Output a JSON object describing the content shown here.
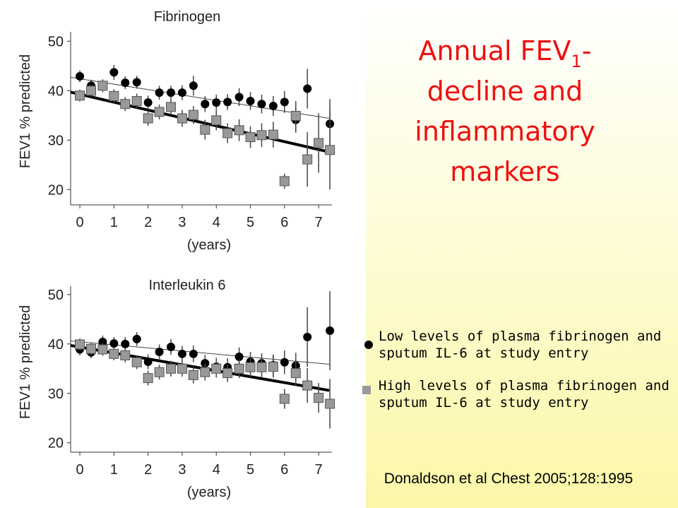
{
  "chart_data": [
    {
      "type": "scatter",
      "title": "Fibrinogen",
      "xlabel": "(years)",
      "ylabel": "FEV1 % predicted",
      "xlim": [
        -0.27,
        7.39
      ],
      "ylim": [
        16.9,
        51.9
      ],
      "xticks": [
        0,
        1,
        2,
        3,
        4,
        5,
        6,
        7
      ],
      "yticks": [
        20,
        30,
        40,
        50
      ],
      "series": [
        {
          "color": "#000000",
          "marker": "circle",
          "x": [
            0,
            0.33,
            1,
            1.33,
            1.67,
            2,
            2.33,
            2.67,
            3,
            3.33,
            3.67,
            4,
            4.33,
            4.67,
            5,
            5.33,
            5.67,
            6,
            6.33,
            6.67,
            7.33
          ],
          "values": [
            42.9,
            41.0,
            43.7,
            41.6,
            41.7,
            37.6,
            39.6,
            39.6,
            39.6,
            41.0,
            37.3,
            37.6,
            37.7,
            38.7,
            37.9,
            37.3,
            36.9,
            37.7,
            34.1,
            40.4,
            33.3
          ],
          "errors": [
            1.2,
            1.2,
            1.5,
            1.3,
            1.3,
            1.4,
            1.4,
            1.4,
            1.5,
            2.0,
            1.6,
            1.6,
            1.6,
            1.8,
            1.8,
            1.9,
            2.0,
            2.2,
            2.6,
            4.0,
            5.0
          ]
        },
        {
          "color": "#999999",
          "marker": "square",
          "x": [
            0,
            0.33,
            0.67,
            1,
            1.33,
            1.67,
            2,
            2.33,
            2.67,
            3,
            3.33,
            3.67,
            4,
            4.33,
            4.67,
            5,
            5.33,
            5.67,
            6,
            6.33,
            6.67,
            7,
            7.33
          ],
          "values": [
            39.0,
            40.0,
            41.0,
            38.9,
            37.3,
            37.9,
            34.4,
            35.7,
            36.7,
            34.4,
            35.1,
            32.1,
            34.0,
            31.4,
            32.0,
            30.6,
            31.0,
            31.1,
            21.7,
            34.9,
            26.1,
            29.4,
            28.0
          ],
          "errors": [
            1.2,
            1.2,
            1.3,
            1.4,
            1.4,
            1.5,
            1.5,
            1.5,
            1.6,
            1.7,
            1.8,
            2.0,
            2.0,
            2.0,
            2.2,
            2.2,
            2.4,
            2.6,
            1.5,
            3.0,
            5.5,
            6.0,
            8.0
          ]
        }
      ],
      "trends": [
        {
          "color": "#444444",
          "width": 1,
          "x": [
            -0.27,
            7.31
          ],
          "values": [
            42.7,
            34.4
          ]
        },
        {
          "color": "#000000",
          "width": 4,
          "x": [
            -0.27,
            7.31
          ],
          "values": [
            39.7,
            27.6
          ]
        }
      ]
    },
    {
      "type": "scatter",
      "title": "Interleukin 6",
      "xlabel": "(years)",
      "ylabel": "FEV1 % predicted",
      "xlim": [
        -0.27,
        7.39
      ],
      "ylim": [
        18.1,
        51.7
      ],
      "xticks": [
        0,
        1,
        2,
        3,
        4,
        5,
        6,
        7
      ],
      "yticks": [
        20,
        30,
        40,
        50
      ],
      "series": [
        {
          "color": "#000000",
          "marker": "circle",
          "x": [
            0,
            0.33,
            0.67,
            1,
            1.33,
            1.67,
            2,
            2.33,
            2.67,
            3,
            3.33,
            3.67,
            4,
            4.33,
            4.67,
            5,
            5.33,
            5.67,
            6,
            6.33,
            6.67,
            7.33
          ],
          "values": [
            38.9,
            38.3,
            40.4,
            40.1,
            40.0,
            41.0,
            36.4,
            38.4,
            39.4,
            38.0,
            38.0,
            36.1,
            35.4,
            35.3,
            37.4,
            36.4,
            36.1,
            35.7,
            36.3,
            35.6,
            41.4,
            42.7
          ],
          "errors": [
            1.2,
            1.2,
            1.3,
            1.3,
            1.4,
            1.4,
            1.5,
            1.5,
            1.6,
            1.6,
            1.7,
            1.7,
            1.8,
            1.8,
            1.9,
            2.0,
            2.0,
            2.2,
            2.4,
            2.6,
            6.0,
            8.0
          ]
        },
        {
          "color": "#999999",
          "marker": "square",
          "x": [
            0,
            0.33,
            0.67,
            1,
            1.33,
            1.67,
            2,
            2.33,
            2.67,
            3,
            3.33,
            3.67,
            4,
            4.33,
            4.67,
            5,
            5.33,
            5.67,
            6,
            6.33,
            6.67,
            7,
            7.33
          ],
          "values": [
            39.9,
            39.0,
            38.9,
            38.0,
            37.7,
            36.3,
            33.1,
            34.3,
            35.0,
            35.0,
            33.7,
            34.3,
            35.0,
            34.1,
            35.0,
            35.3,
            35.3,
            35.4,
            28.9,
            34.1,
            31.6,
            29.1,
            27.9
          ],
          "errors": [
            1.2,
            1.2,
            1.3,
            1.3,
            1.4,
            1.4,
            1.5,
            1.5,
            1.6,
            1.6,
            1.7,
            1.7,
            1.8,
            1.8,
            1.9,
            2.0,
            2.0,
            2.2,
            2.0,
            2.6,
            3.5,
            3.0,
            5.0
          ]
        }
      ],
      "trends": [
        {
          "color": "#444444",
          "width": 1,
          "x": [
            -0.27,
            7.31
          ],
          "values": [
            40.6,
            35.9
          ]
        },
        {
          "color": "#000000",
          "width": 4,
          "x": [
            -0.27,
            7.31
          ],
          "values": [
            39.7,
            30.6
          ]
        }
      ]
    }
  ],
  "slide": {
    "title": [
      "Annual FEV",
      "1",
      "-",
      "decline and",
      "inflammatory",
      "markers"
    ],
    "legend": [
      "Low levels of plasma fibrinogen and",
      "sputum IL-6 at study entry",
      "High levels of plasma fibrinogen and",
      "sputum IL-6 at study entry"
    ],
    "citation": "Donaldson et al Chest 2005;128:1995"
  }
}
